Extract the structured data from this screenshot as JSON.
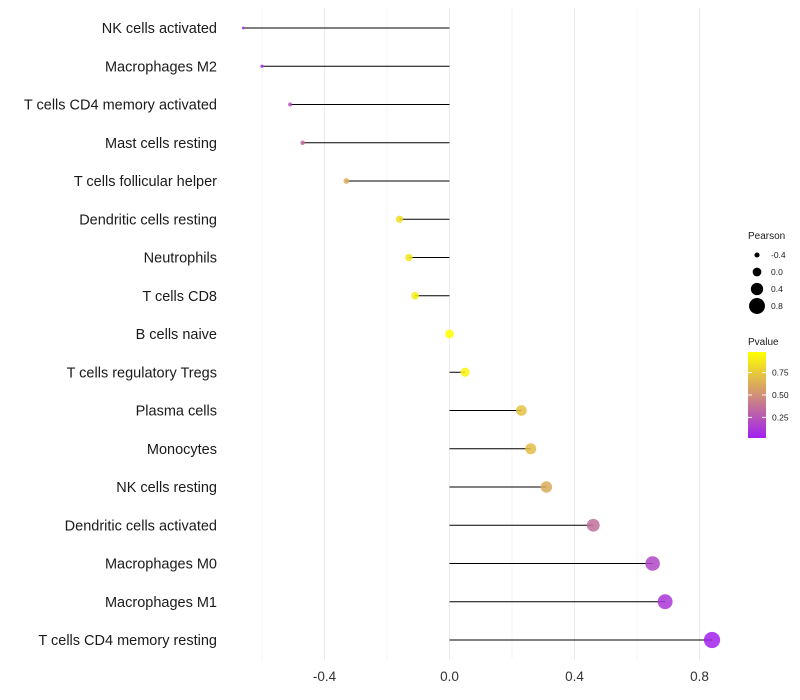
{
  "chart_data": {
    "type": "lollipop",
    "categories": [
      "NK cells activated",
      "Macrophages M2",
      "T cells CD4 memory activated",
      "Mast cells resting",
      "T cells follicular helper",
      "Dendritic cells resting",
      "Neutrophils",
      "T cells CD8",
      "B cells naive",
      "T cells regulatory  Tregs ",
      "Plasma cells",
      "Monocytes",
      "NK cells resting",
      "Dendritic cells activated",
      "Macrophages M0",
      "Macrophages M1",
      "T cells CD4 memory resting"
    ],
    "pearson": [
      -0.66,
      -0.6,
      -0.51,
      -0.47,
      -0.33,
      -0.16,
      -0.13,
      -0.11,
      0.0,
      0.05,
      0.23,
      0.26,
      0.31,
      0.46,
      0.65,
      0.69,
      0.84
    ],
    "pvalue": [
      0.03,
      0.06,
      0.22,
      0.32,
      0.62,
      0.85,
      0.89,
      0.92,
      1.0,
      0.95,
      0.72,
      0.7,
      0.62,
      0.35,
      0.17,
      0.1,
      0.01
    ],
    "xlim": [
      -0.72,
      0.91
    ],
    "xticks": [
      -0.4,
      0.0,
      0.4,
      0.8
    ],
    "xtick_labels": [
      "-0.4",
      "0.0",
      "0.4",
      "0.8"
    ],
    "xlabel": "",
    "ylabel": "",
    "grid": true,
    "size_legend": {
      "title": "Pearson",
      "breaks": [
        -0.4,
        0.0,
        0.4,
        0.8
      ],
      "labels": [
        "-0.4",
        "0.0",
        "0.4",
        "0.8"
      ]
    },
    "color_legend": {
      "title": "Pvalue",
      "breaks": [
        0.75,
        0.5,
        0.25
      ],
      "labels": [
        "0.75",
        "0.50",
        "0.25"
      ],
      "range": [
        0.0,
        1.0
      ],
      "low_color": "#a020f0",
      "high_color": "#ffff00"
    },
    "segment_color": "#000000",
    "legend_position": "right"
  }
}
